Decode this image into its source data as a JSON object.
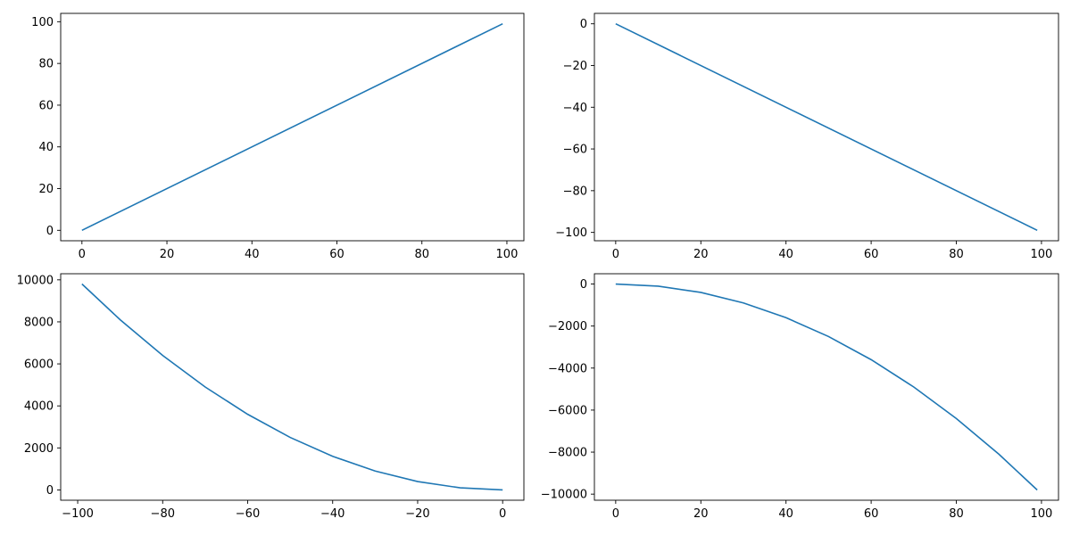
{
  "figure": {
    "line_color": "#1f77b4"
  },
  "chart_data": [
    {
      "type": "line",
      "title": "",
      "xlabel": "",
      "ylabel": "",
      "grid": false,
      "x": [
        0,
        99
      ],
      "series": [
        {
          "values": [
            0,
            99
          ]
        }
      ],
      "xlim": [
        -5,
        104
      ],
      "ylim": [
        -5,
        104
      ],
      "xticks": [
        0,
        20,
        40,
        60,
        80,
        100
      ],
      "yticks": [
        0,
        20,
        40,
        60,
        80,
        100
      ],
      "xtick_labels": [
        "0",
        "20",
        "40",
        "60",
        "80",
        "100"
      ],
      "ytick_labels": [
        "0",
        "20",
        "40",
        "60",
        "80",
        "100"
      ]
    },
    {
      "type": "line",
      "title": "",
      "xlabel": "",
      "ylabel": "",
      "grid": false,
      "x": [
        0,
        99
      ],
      "series": [
        {
          "values": [
            0,
            -99
          ]
        }
      ],
      "xlim": [
        -5,
        104
      ],
      "ylim": [
        -104,
        5
      ],
      "xticks": [
        0,
        20,
        40,
        60,
        80,
        100
      ],
      "yticks": [
        0,
        -20,
        -40,
        -60,
        -80,
        -100
      ],
      "xtick_labels": [
        "0",
        "20",
        "40",
        "60",
        "80",
        "100"
      ],
      "ytick_labels": [
        "0",
        "−20",
        "−40",
        "−60",
        "−80",
        "−100"
      ]
    },
    {
      "type": "line",
      "title": "",
      "xlabel": "",
      "ylabel": "",
      "grid": false,
      "x": [
        -99,
        -90,
        -80,
        -70,
        -60,
        -50,
        -40,
        -30,
        -20,
        -10,
        0
      ],
      "series": [
        {
          "values": [
            9801,
            8100,
            6400,
            4900,
            3600,
            2500,
            1600,
            900,
            400,
            100,
            0
          ]
        }
      ],
      "xlim": [
        -104,
        5
      ],
      "ylim": [
        -490,
        10290
      ],
      "xticks": [
        -100,
        -80,
        -60,
        -40,
        -20,
        0
      ],
      "yticks": [
        0,
        2000,
        4000,
        6000,
        8000,
        10000
      ],
      "xtick_labels": [
        "−100",
        "−80",
        "−60",
        "−40",
        "−20",
        "0"
      ],
      "ytick_labels": [
        "0",
        "2000",
        "4000",
        "6000",
        "8000",
        "10000"
      ]
    },
    {
      "type": "line",
      "title": "",
      "xlabel": "",
      "ylabel": "",
      "grid": false,
      "x": [
        0,
        10,
        20,
        30,
        40,
        50,
        60,
        70,
        80,
        90,
        99
      ],
      "series": [
        {
          "values": [
            0,
            -100,
            -400,
            -900,
            -1600,
            -2500,
            -3600,
            -4900,
            -6400,
            -8100,
            -9801
          ]
        }
      ],
      "xlim": [
        -5,
        104
      ],
      "ylim": [
        -10290,
        490
      ],
      "xticks": [
        0,
        20,
        40,
        60,
        80,
        100
      ],
      "yticks": [
        0,
        -2000,
        -4000,
        -6000,
        -8000,
        -10000
      ],
      "xtick_labels": [
        "0",
        "20",
        "40",
        "60",
        "80",
        "100"
      ],
      "ytick_labels": [
        "0",
        "−2000",
        "−4000",
        "−6000",
        "−8000",
        "−10000"
      ]
    }
  ]
}
